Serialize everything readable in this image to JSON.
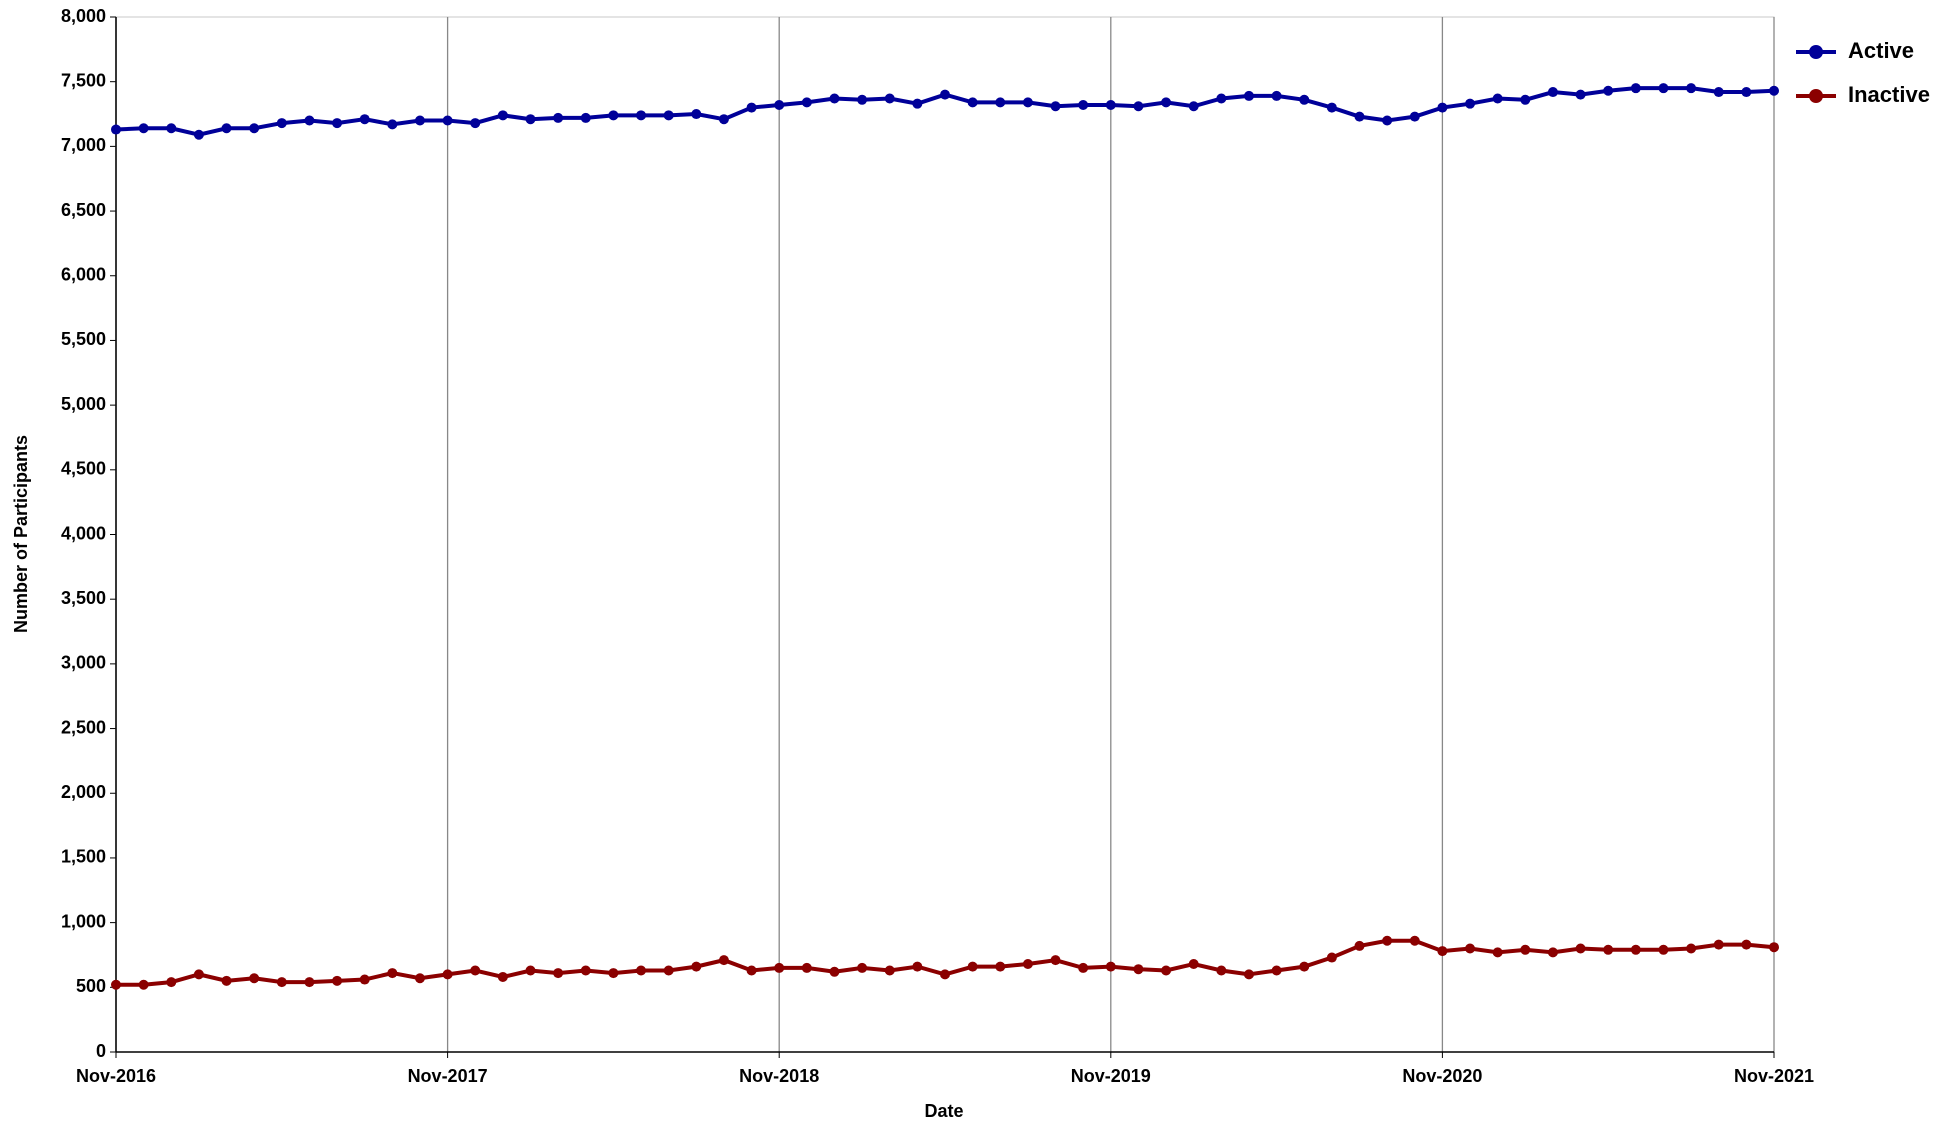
{
  "chart_data": {
    "type": "line",
    "x_label": "Date",
    "y_label": "Number of Participants",
    "categories": [
      "Nov-2016",
      null,
      null,
      null,
      null,
      null,
      null,
      null,
      null,
      null,
      null,
      null,
      "Nov-2017",
      null,
      null,
      null,
      null,
      null,
      null,
      null,
      null,
      null,
      null,
      null,
      "Nov-2018",
      null,
      null,
      null,
      null,
      null,
      null,
      null,
      null,
      null,
      null,
      null,
      "Nov-2019",
      null,
      null,
      null,
      null,
      null,
      null,
      null,
      null,
      null,
      null,
      null,
      "Nov-2020",
      null,
      null,
      null,
      null,
      null,
      null,
      null,
      null,
      null,
      null,
      null,
      "Nov-2021"
    ],
    "series": [
      {
        "name": "Active",
        "color": "#000099",
        "values": [
          7130,
          7140,
          7140,
          7090,
          7140,
          7140,
          7180,
          7200,
          7180,
          7210,
          7170,
          7200,
          7200,
          7180,
          7240,
          7210,
          7220,
          7220,
          7240,
          7240,
          7240,
          7250,
          7210,
          7300,
          7320,
          7340,
          7370,
          7360,
          7370,
          7330,
          7400,
          7340,
          7340,
          7340,
          7310,
          7320,
          7320,
          7310,
          7340,
          7310,
          7370,
          7390,
          7390,
          7360,
          7300,
          7230,
          7200,
          7230,
          7300,
          7330,
          7370,
          7360,
          7420,
          7400,
          7430,
          7450,
          7450,
          7450,
          7420,
          7420,
          7430
        ]
      },
      {
        "name": "Inactive",
        "color": "#8b0000",
        "values": [
          520,
          520,
          540,
          600,
          550,
          570,
          540,
          540,
          550,
          560,
          610,
          570,
          600,
          630,
          580,
          630,
          610,
          630,
          610,
          630,
          630,
          660,
          710,
          630,
          650,
          650,
          620,
          650,
          630,
          660,
          600,
          660,
          660,
          680,
          710,
          650,
          660,
          640,
          630,
          680,
          630,
          600,
          630,
          660,
          730,
          820,
          860,
          860,
          780,
          800,
          770,
          790,
          770,
          800,
          790,
          790,
          790,
          800,
          830,
          830,
          810
        ]
      }
    ],
    "ylim": [
      0,
      8000
    ],
    "yticks": [
      0,
      500,
      {
        "value": 1000,
        "label": "1,000"
      },
      {
        "value": 1500,
        "label": "1,500"
      },
      {
        "value": 2000,
        "label": "2,000"
      },
      {
        "value": 2500,
        "label": "2,500"
      },
      {
        "value": 3000,
        "label": "3,000"
      },
      {
        "value": 3500,
        "label": "3,500"
      },
      {
        "value": 4000,
        "label": "4,000"
      },
      {
        "value": 4500,
        "label": "4,500"
      },
      {
        "value": 5000,
        "label": "5,000"
      },
      {
        "value": 5500,
        "label": "5,500"
      },
      {
        "value": 6000,
        "label": "6,000"
      },
      {
        "value": 6500,
        "label": "6,500"
      },
      {
        "value": 7000,
        "label": "7,000"
      },
      {
        "value": 7500,
        "label": "7,500"
      },
      {
        "value": 8000,
        "label": "8,000"
      }
    ],
    "grid": true,
    "legend": "right"
  }
}
